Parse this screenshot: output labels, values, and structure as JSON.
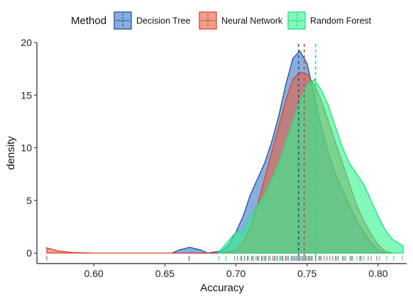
{
  "chart_data": {
    "type": "area",
    "subtype": "density",
    "xlabel": "Accuracy",
    "ylabel": "density",
    "xlim": [
      0.56,
      0.82
    ],
    "ylim": [
      -1,
      20
    ],
    "x_ticks": [
      0.6,
      0.65,
      0.7,
      0.75,
      0.8
    ],
    "x_tick_labels": [
      "0.60",
      "0.65",
      "0.70",
      "0.75",
      "0.80"
    ],
    "y_ticks": [
      0,
      5,
      10,
      15,
      20
    ],
    "y_tick_labels": [
      "0",
      "5",
      "10",
      "15",
      "20"
    ],
    "legend": {
      "title": "Method",
      "position": "top"
    },
    "grid": false,
    "series": [
      {
        "name": "Decision Tree",
        "fill": "#3A76C8",
        "stroke": "#1F4F9A",
        "mean": 0.744,
        "x": [
          0.6675,
          0.68,
          0.69,
          0.695,
          0.7,
          0.705,
          0.71,
          0.715,
          0.72,
          0.725,
          0.73,
          0.735,
          0.74,
          0.745,
          0.75,
          0.755,
          0.76,
          0.765,
          0.77,
          0.775,
          0.78,
          0.785,
          0.79,
          0.795,
          0.8,
          0.805
        ],
        "y": [
          0,
          0,
          0.2,
          0.8,
          2,
          3.5,
          5.5,
          7,
          8.5,
          10.5,
          13,
          16,
          18.5,
          19.2,
          18,
          15,
          12,
          9.5,
          7.5,
          6,
          4.5,
          3,
          2,
          1,
          0.3,
          0
        ],
        "extra_bump": {
          "x": [
            0.655,
            0.66,
            0.6675,
            0.675,
            0.68
          ],
          "y": [
            0,
            0.3,
            0.55,
            0.3,
            0
          ]
        }
      },
      {
        "name": "Neural Network",
        "fill": "#E2603F",
        "stroke": "#D8472A",
        "mean": 0.748,
        "x": [
          0.567,
          0.575,
          0.585,
          0.6,
          0.65,
          0.69,
          0.7,
          0.705,
          0.71,
          0.715,
          0.72,
          0.725,
          0.73,
          0.735,
          0.74,
          0.745,
          0.75,
          0.755,
          0.76,
          0.765,
          0.77,
          0.775,
          0.78,
          0.785,
          0.79,
          0.795,
          0.8,
          0.805,
          0.81
        ],
        "y": [
          0.5,
          0.2,
          0.05,
          0,
          0,
          0,
          0.3,
          1,
          2.5,
          4.5,
          7,
          9.5,
          12,
          14.5,
          16.5,
          17.2,
          17,
          16,
          14.5,
          12.5,
          10.5,
          8.5,
          6.5,
          4.5,
          3,
          1.8,
          0.8,
          0.2,
          0
        ]
      },
      {
        "name": "Random Forest",
        "fill": "#2EF58D",
        "stroke": "#1FE07E",
        "mean": 0.756,
        "x": [
          0.6875,
          0.69,
          0.695,
          0.7,
          0.705,
          0.71,
          0.715,
          0.72,
          0.725,
          0.73,
          0.735,
          0.74,
          0.745,
          0.75,
          0.755,
          0.76,
          0.765,
          0.77,
          0.775,
          0.78,
          0.785,
          0.79,
          0.795,
          0.8,
          0.805,
          0.81,
          0.8175
        ],
        "y": [
          0.1,
          0.4,
          1.2,
          2.0,
          2.0,
          3.5,
          4.5,
          5.5,
          7,
          8.5,
          10.5,
          12.5,
          14.5,
          16,
          16.5,
          15.5,
          14,
          12,
          10,
          8.5,
          7.5,
          6.5,
          5,
          3.5,
          2.2,
          1.3,
          0.7
        ]
      }
    ],
    "rug": {
      "Decision Tree": [
        0.667,
        0.704,
        0.708,
        0.712,
        0.715,
        0.718,
        0.721,
        0.724,
        0.727,
        0.729,
        0.731,
        0.733,
        0.735,
        0.737,
        0.739,
        0.741,
        0.743,
        0.745,
        0.747,
        0.749,
        0.751,
        0.753,
        0.756,
        0.759,
        0.762,
        0.766,
        0.77,
        0.775,
        0.781,
        0.788,
        0.795
      ],
      "Neural Network": [
        0.567,
        0.701,
        0.706,
        0.711,
        0.716,
        0.72,
        0.723,
        0.726,
        0.729,
        0.732,
        0.736,
        0.74,
        0.744,
        0.748,
        0.752,
        0.756,
        0.76,
        0.764,
        0.768,
        0.772,
        0.777,
        0.782,
        0.787,
        0.793,
        0.799
      ],
      "Random Forest": [
        0.688,
        0.693,
        0.699,
        0.703,
        0.709,
        0.714,
        0.719,
        0.724,
        0.728,
        0.732,
        0.737,
        0.742,
        0.746,
        0.75,
        0.754,
        0.758,
        0.762,
        0.766,
        0.771,
        0.776,
        0.78,
        0.785,
        0.79,
        0.795,
        0.801,
        0.806,
        0.811,
        0.817
      ]
    }
  }
}
